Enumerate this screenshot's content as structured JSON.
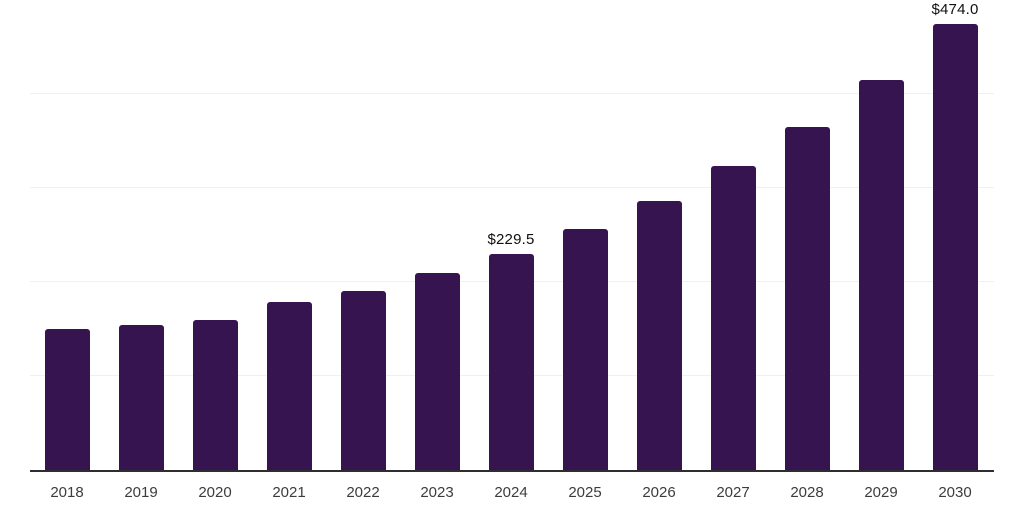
{
  "chart_data": {
    "type": "bar",
    "title": "",
    "xlabel": "",
    "ylabel": "",
    "categories": [
      "2018",
      "2019",
      "2020",
      "2021",
      "2022",
      "2023",
      "2024",
      "2025",
      "2026",
      "2027",
      "2028",
      "2029",
      "2030"
    ],
    "values": [
      149.8,
      154.1,
      159.4,
      178.5,
      190.2,
      209.3,
      229.5,
      256.1,
      285.8,
      323.0,
      364.4,
      414.4,
      474.0
    ],
    "data_labels": {
      "2024": "$229.5",
      "2030": "$474.0"
    },
    "ylim": [
      0,
      500
    ],
    "grid_step": 100,
    "grid": true,
    "legend": false,
    "colors": {
      "bar": "#351450",
      "axis_line": "#2e2e2e",
      "gridline": "#f0f0f0",
      "value_label": "#101010",
      "tick_label": "#3c3c3c",
      "background": "#ffffff"
    }
  }
}
